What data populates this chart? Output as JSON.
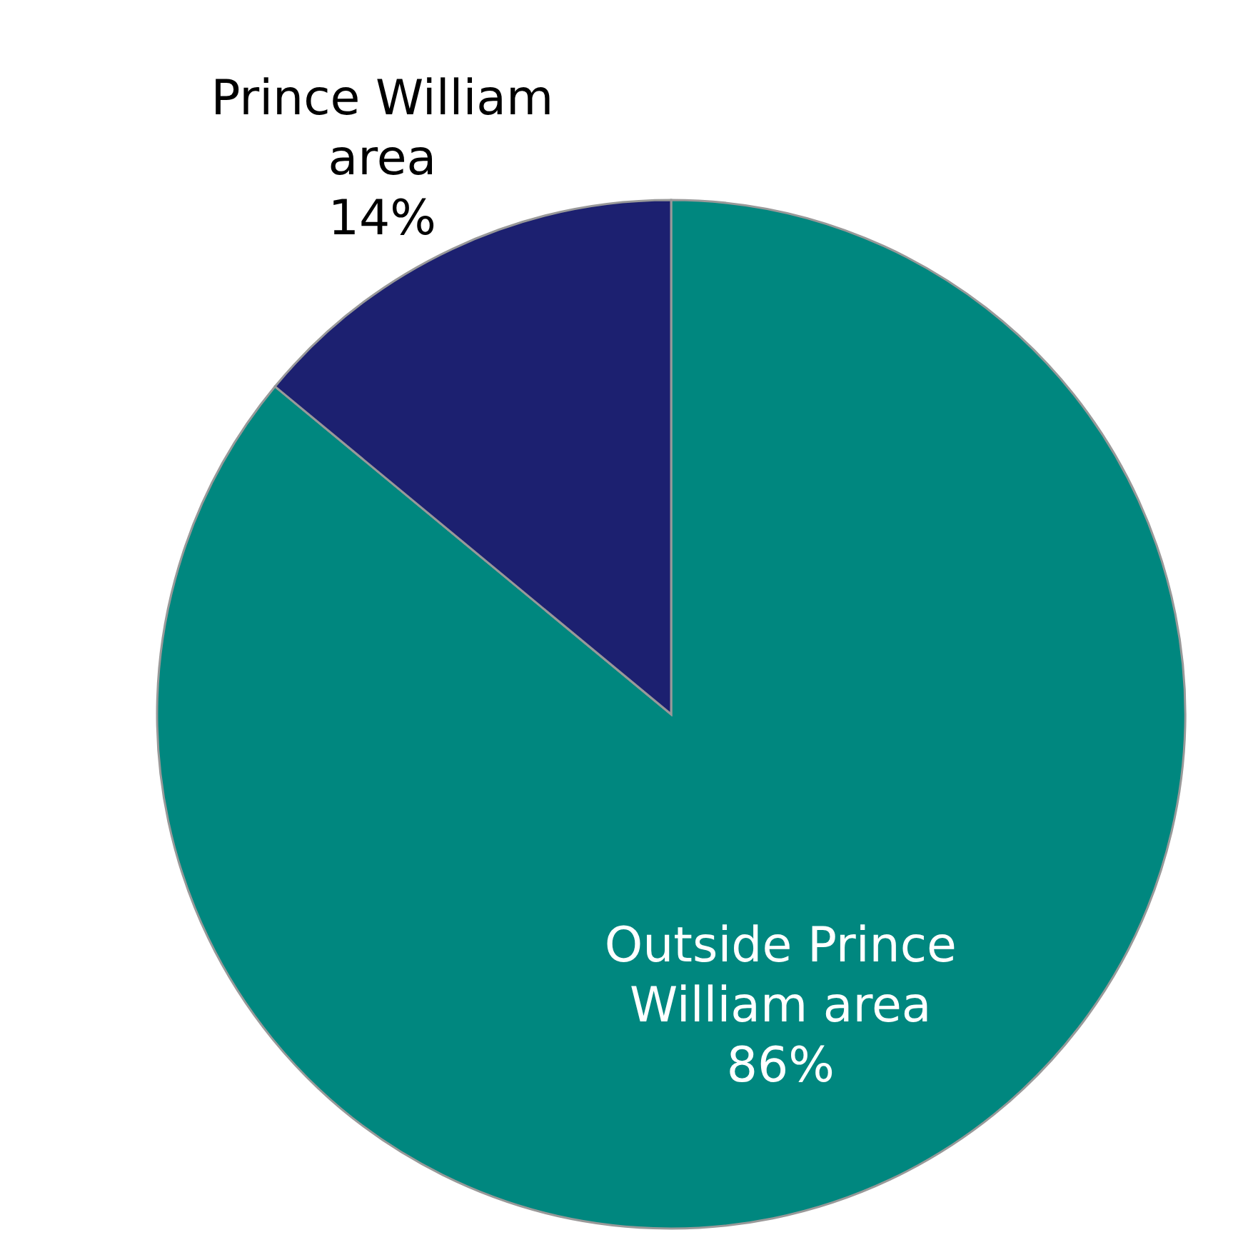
{
  "chart_data": {
    "type": "pie",
    "categories": [
      "Outside Prince William area",
      "Prince William area"
    ],
    "values": [
      86,
      14
    ],
    "colors": [
      "#00877f",
      "#1c2070"
    ],
    "value_labels": [
      "86%",
      "14%"
    ]
  }
}
